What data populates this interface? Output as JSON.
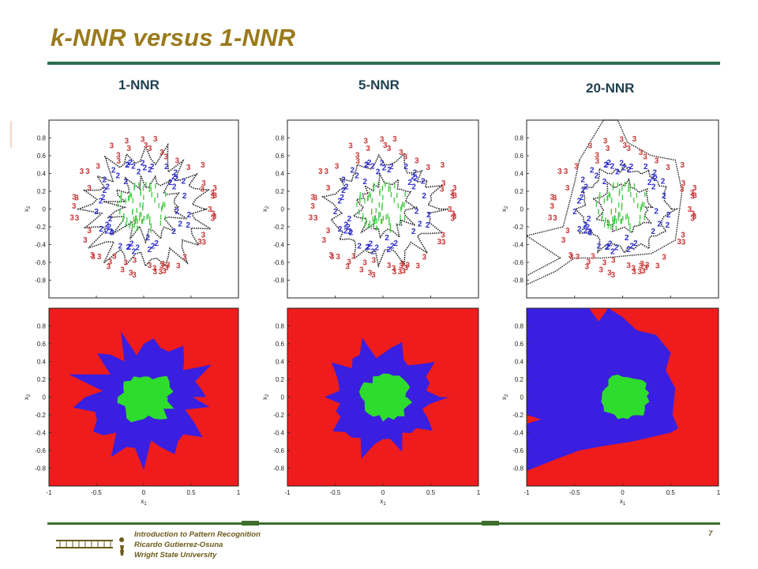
{
  "slide": {
    "title": "k-NNR versus 1-NNR",
    "page_number": "7",
    "footer": {
      "line1": "Introduction to Pattern Recognition",
      "line2": "Ricardo Gutierrez-Osuna",
      "line3": "Wright State University"
    }
  },
  "columns": [
    {
      "label": "1-NNR"
    },
    {
      "label": "5-NNR"
    },
    {
      "label": "20-NNR"
    }
  ],
  "axes": {
    "xlabel": "x",
    "xlabel_sub": "1",
    "ylabel": "x",
    "ylabel_sub": "2",
    "x_ticks": [
      "-1",
      "-0.5",
      "0",
      "0.5",
      "1"
    ],
    "y_ticks": [
      "0.8",
      "0.6",
      "0.4",
      "0.2",
      "0",
      "-0.2",
      "-0.4",
      "-0.6",
      "-0.8"
    ]
  },
  "colors": {
    "class1": "#2edc2e",
    "class2": "#3a1fe0",
    "class3": "#ee1c1c",
    "scatter_class1": "#3ec93e",
    "scatter_class2": "#2c2ccf",
    "scatter_class3": "#c83a3a",
    "title": "#9a7a1c",
    "rule": "#2c6e4f"
  },
  "chart_data": [
    {
      "type": "scatter",
      "panel": "1-NNR data with decision boundary",
      "xlim": [
        -1,
        1
      ],
      "ylim": [
        -1,
        1
      ],
      "series": [
        {
          "name": "1",
          "region": "inner disk r<0.3"
        },
        {
          "name": "2",
          "region": "ring 0.3<r<0.55"
        },
        {
          "name": "3",
          "region": "outer ring 0.55<r<0.78"
        }
      ]
    },
    {
      "type": "scatter",
      "panel": "5-NNR data with decision boundary",
      "xlim": [
        -1,
        1
      ],
      "ylim": [
        -1,
        1
      ],
      "series": [
        {
          "name": "1"
        },
        {
          "name": "2"
        },
        {
          "name": "3"
        }
      ]
    },
    {
      "type": "scatter",
      "panel": "20-NNR data with decision boundary",
      "xlim": [
        -1,
        1
      ],
      "ylim": [
        -1,
        1
      ],
      "series": [
        {
          "name": "1"
        },
        {
          "name": "2"
        },
        {
          "name": "3"
        }
      ]
    },
    {
      "type": "heatmap",
      "panel": "1-NNR decision regions",
      "xlim": [
        -1,
        1
      ],
      "ylim": [
        -1,
        1
      ],
      "classes": [
        "1",
        "2",
        "3"
      ]
    },
    {
      "type": "heatmap",
      "panel": "5-NNR decision regions",
      "xlim": [
        -1,
        1
      ],
      "ylim": [
        -1,
        1
      ],
      "classes": [
        "1",
        "2",
        "3"
      ]
    },
    {
      "type": "heatmap",
      "panel": "20-NNR decision regions",
      "xlim": [
        -1,
        1
      ],
      "ylim": [
        -1,
        1
      ],
      "classes": [
        "1",
        "2",
        "3"
      ]
    }
  ]
}
